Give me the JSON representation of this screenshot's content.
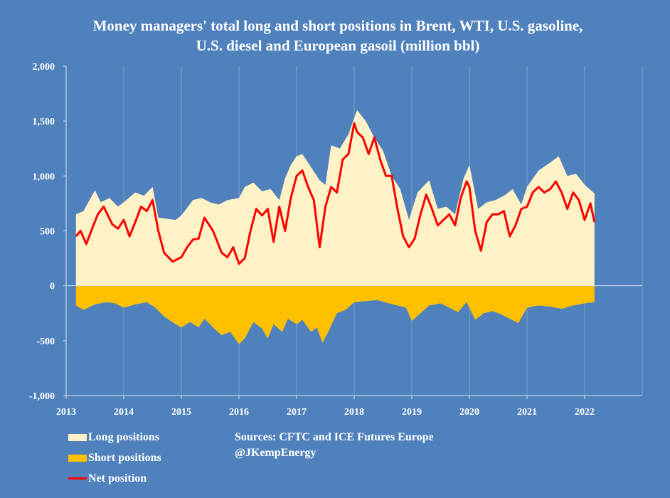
{
  "chart_data": {
    "type": "area",
    "title": "Money managers' total long and short positions in Brent, WTI, U.S. gasoline, U.S. diesel and European gasoil  (million bbl)",
    "ylim": [
      -1000,
      2000
    ],
    "xlim": [
      2013,
      2023
    ],
    "y_ticks": [
      "2,000",
      "1,500",
      "1,000",
      "500",
      "0",
      "-500",
      "-1,000"
    ],
    "x_ticks": [
      "2013",
      "2014",
      "2015",
      "2016",
      "2017",
      "2018",
      "2019",
      "2020",
      "2021",
      "2022"
    ],
    "grid": "vertical",
    "legend_position": "bottom-left",
    "colors": {
      "background": "#4f81bd",
      "long": "#fff2c6",
      "short": "#ffc000",
      "net": "#ff0000",
      "grid": "#7f9fcc"
    },
    "series": [
      {
        "name": "Long positions",
        "x": [
          2013.17,
          2013.3,
          2013.5,
          2013.6,
          2013.75,
          2013.9,
          2014.0,
          2014.2,
          2014.35,
          2014.5,
          2014.6,
          2014.75,
          2014.9,
          2015.0,
          2015.2,
          2015.35,
          2015.5,
          2015.65,
          2015.8,
          2016.0,
          2016.1,
          2016.25,
          2016.4,
          2016.55,
          2016.7,
          2016.8,
          2016.9,
          2017.0,
          2017.1,
          2017.25,
          2017.4,
          2017.5,
          2017.6,
          2017.75,
          2017.9,
          2018.05,
          2018.2,
          2018.35,
          2018.5,
          2018.65,
          2018.8,
          2018.95,
          2019.1,
          2019.3,
          2019.45,
          2019.6,
          2019.75,
          2019.9,
          2020.0,
          2020.15,
          2020.3,
          2020.45,
          2020.6,
          2020.75,
          2020.9,
          2021.0,
          2021.2,
          2021.4,
          2021.55,
          2021.7,
          2021.85,
          2022.0,
          2022.17
        ],
        "values": [
          650,
          680,
          870,
          760,
          800,
          720,
          760,
          850,
          820,
          900,
          620,
          610,
          600,
          640,
          780,
          800,
          760,
          740,
          780,
          800,
          900,
          940,
          860,
          880,
          780,
          980,
          1100,
          1180,
          1200,
          1080,
          960,
          920,
          1280,
          1250,
          1380,
          1600,
          1500,
          1350,
          1230,
          1000,
          880,
          600,
          850,
          960,
          700,
          720,
          650,
          980,
          1100,
          700,
          760,
          780,
          820,
          880,
          740,
          900,
          1050,
          1120,
          1180,
          1000,
          1020,
          920,
          840
        ]
      },
      {
        "name": "Short positions",
        "x": [
          2013.17,
          2013.3,
          2013.5,
          2013.7,
          2013.85,
          2014.0,
          2014.2,
          2014.4,
          2014.55,
          2014.7,
          2014.9,
          2015.0,
          2015.15,
          2015.3,
          2015.4,
          2015.55,
          2015.7,
          2015.85,
          2016.0,
          2016.1,
          2016.25,
          2016.4,
          2016.5,
          2016.6,
          2016.75,
          2016.85,
          2017.0,
          2017.1,
          2017.25,
          2017.35,
          2017.45,
          2017.55,
          2017.7,
          2017.85,
          2018.0,
          2018.2,
          2018.4,
          2018.6,
          2018.75,
          2018.9,
          2019.0,
          2019.15,
          2019.3,
          2019.5,
          2019.65,
          2019.8,
          2019.95,
          2020.1,
          2020.25,
          2020.4,
          2020.55,
          2020.7,
          2020.85,
          2021.0,
          2021.2,
          2021.4,
          2021.6,
          2021.8,
          2022.0,
          2022.17
        ],
        "values": [
          -180,
          -220,
          -170,
          -150,
          -160,
          -200,
          -170,
          -150,
          -200,
          -280,
          -350,
          -380,
          -330,
          -380,
          -300,
          -380,
          -450,
          -420,
          -530,
          -480,
          -330,
          -390,
          -480,
          -350,
          -420,
          -300,
          -350,
          -310,
          -420,
          -380,
          -520,
          -420,
          -250,
          -220,
          -150,
          -140,
          -130,
          -160,
          -180,
          -200,
          -320,
          -250,
          -180,
          -160,
          -200,
          -240,
          -150,
          -310,
          -250,
          -230,
          -260,
          -300,
          -340,
          -200,
          -180,
          -190,
          -210,
          -180,
          -160,
          -150
        ]
      },
      {
        "name": "Net position",
        "x": [
          2013.17,
          2013.25,
          2013.35,
          2013.45,
          2013.55,
          2013.65,
          2013.8,
          2013.9,
          2014.0,
          2014.1,
          2014.2,
          2014.3,
          2014.4,
          2014.5,
          2014.6,
          2014.7,
          2014.85,
          2015.0,
          2015.1,
          2015.2,
          2015.3,
          2015.4,
          2015.55,
          2015.7,
          2015.8,
          2015.9,
          2016.0,
          2016.1,
          2016.2,
          2016.3,
          2016.4,
          2016.5,
          2016.6,
          2016.7,
          2016.8,
          2016.9,
          2017.0,
          2017.1,
          2017.2,
          2017.3,
          2017.4,
          2017.5,
          2017.6,
          2017.7,
          2017.8,
          2017.9,
          2018.0,
          2018.05,
          2018.15,
          2018.25,
          2018.35,
          2018.45,
          2018.55,
          2018.65,
          2018.75,
          2018.85,
          2018.95,
          2019.05,
          2019.15,
          2019.25,
          2019.35,
          2019.45,
          2019.55,
          2019.65,
          2019.75,
          2019.85,
          2019.95,
          2020.0,
          2020.1,
          2020.2,
          2020.3,
          2020.4,
          2020.5,
          2020.6,
          2020.7,
          2020.8,
          2020.9,
          2021.0,
          2021.1,
          2021.2,
          2021.3,
          2021.4,
          2021.5,
          2021.6,
          2021.7,
          2021.8,
          2021.9,
          2022.0,
          2022.1,
          2022.17
        ],
        "values": [
          450,
          500,
          380,
          520,
          650,
          720,
          560,
          520,
          600,
          450,
          580,
          720,
          680,
          780,
          500,
          300,
          220,
          260,
          350,
          420,
          430,
          620,
          500,
          300,
          260,
          350,
          200,
          250,
          500,
          700,
          640,
          700,
          400,
          720,
          500,
          800,
          1000,
          1050,
          900,
          780,
          350,
          720,
          900,
          850,
          1150,
          1200,
          1480,
          1400,
          1350,
          1200,
          1350,
          1150,
          1000,
          1000,
          700,
          450,
          350,
          430,
          650,
          830,
          700,
          550,
          600,
          650,
          550,
          800,
          950,
          900,
          500,
          320,
          580,
          650,
          650,
          680,
          450,
          550,
          700,
          720,
          850,
          900,
          850,
          880,
          950,
          850,
          700,
          850,
          780,
          600,
          750,
          580
        ]
      }
    ],
    "legend": [
      "Long positions",
      "Short positions",
      "Net position"
    ],
    "annotation": {
      "sources": "Sources: CFTC and ICE Futures Europe",
      "handle": "@JKempEnergy"
    }
  }
}
